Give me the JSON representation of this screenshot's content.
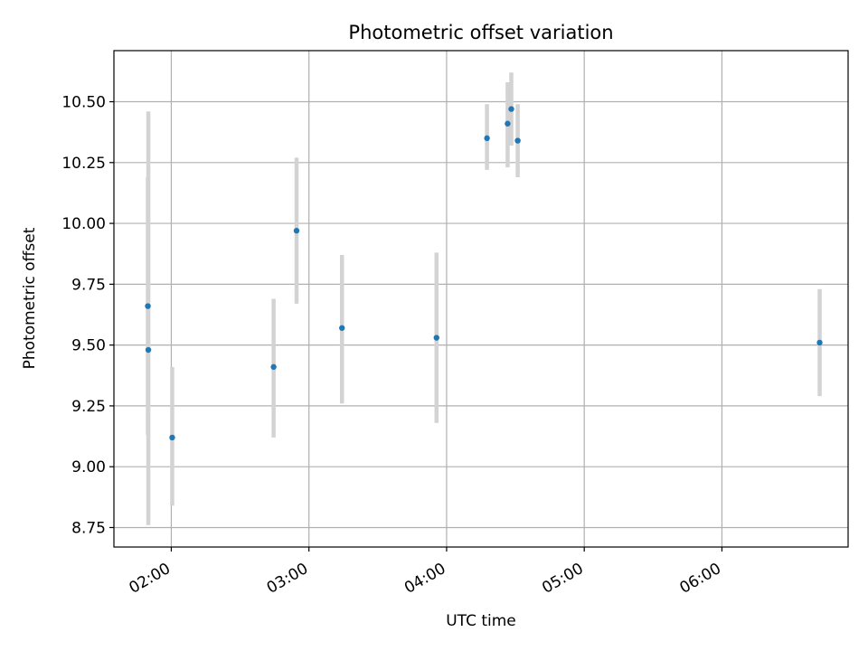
{
  "chart_data": {
    "type": "scatter",
    "title": "Photometric offset variation",
    "xlabel": "UTC time",
    "ylabel": "Photometric offset",
    "xlim": [
      "01:35",
      "06:55"
    ],
    "ylim": [
      8.67,
      10.71
    ],
    "xticks": [
      "02:00",
      "03:00",
      "04:00",
      "05:00",
      "06:00"
    ],
    "yticks": [
      "8.75",
      "9.00",
      "9.25",
      "9.50",
      "9.75",
      "10.00",
      "10.25",
      "10.50"
    ],
    "grid": true,
    "errorbar_color": "#d3d3d3",
    "marker_color": "#1f77b4",
    "series": [
      {
        "points": [
          {
            "x": "01:49.8",
            "y": 9.66,
            "yerr_low": 9.13,
            "yerr_high": 10.19
          },
          {
            "x": "01:50.0",
            "y": 9.48,
            "yerr_low": 8.76,
            "yerr_high": 10.46
          },
          {
            "x": "02:00.4",
            "y": 9.12,
            "yerr_low": 8.84,
            "yerr_high": 9.41
          },
          {
            "x": "02:44.6",
            "y": 9.41,
            "yerr_low": 9.12,
            "yerr_high": 9.69
          },
          {
            "x": "02:54.6",
            "y": 9.97,
            "yerr_low": 9.67,
            "yerr_high": 10.27
          },
          {
            "x": "03:14.4",
            "y": 9.57,
            "yerr_low": 9.26,
            "yerr_high": 9.87
          },
          {
            "x": "03:55.6",
            "y": 9.53,
            "yerr_low": 9.18,
            "yerr_high": 9.88
          },
          {
            "x": "04:17.6",
            "y": 10.35,
            "yerr_low": 10.22,
            "yerr_high": 10.49
          },
          {
            "x": "04:26.6",
            "y": 10.41,
            "yerr_low": 10.23,
            "yerr_high": 10.58
          },
          {
            "x": "04:28.2",
            "y": 10.47,
            "yerr_low": 10.32,
            "yerr_high": 10.62
          },
          {
            "x": "04:31.0",
            "y": 10.34,
            "yerr_low": 10.19,
            "yerr_high": 10.49
          },
          {
            "x": "06:42.6",
            "y": 9.51,
            "yerr_low": 9.29,
            "yerr_high": 9.73
          }
        ]
      }
    ]
  }
}
